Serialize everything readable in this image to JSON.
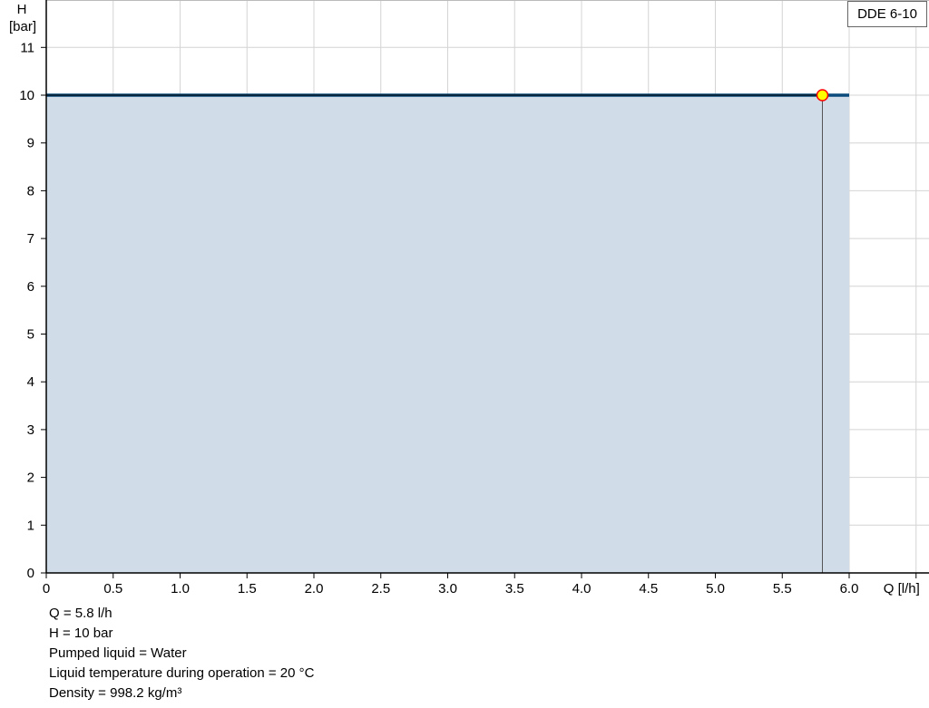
{
  "chart_data": {
    "type": "area",
    "ylabel": "H",
    "yunit": "[bar]",
    "xlabel": "Q [l/h]",
    "xlim": [
      0,
      6.5
    ],
    "ylim": [
      0,
      12
    ],
    "xticks": [
      "0",
      "0.5",
      "1.0",
      "1.5",
      "2.0",
      "2.5",
      "3.0",
      "3.5",
      "4.0",
      "4.5",
      "5.0",
      "5.5",
      "6.0"
    ],
    "yticks": [
      "0",
      "1",
      "2",
      "3",
      "4",
      "5",
      "6",
      "7",
      "8",
      "9",
      "10",
      "11"
    ],
    "grid": true,
    "series": [
      {
        "name": "DDE 6-10",
        "x": [
          0,
          6.0
        ],
        "y": [
          10,
          10
        ],
        "color": "#0b4a7c",
        "fill": "#d0dce7"
      }
    ],
    "duty_point": {
      "x": 5.8,
      "y": 10,
      "color": "#ffff00",
      "stroke": "#ff0000"
    },
    "legend": "top-right"
  },
  "info": [
    "Q = 5.8 l/h",
    "H = 10 bar",
    "Pumped liquid = Water",
    "Liquid temperature during operation = 20 °C",
    "Density = 998.2 kg/m³"
  ]
}
